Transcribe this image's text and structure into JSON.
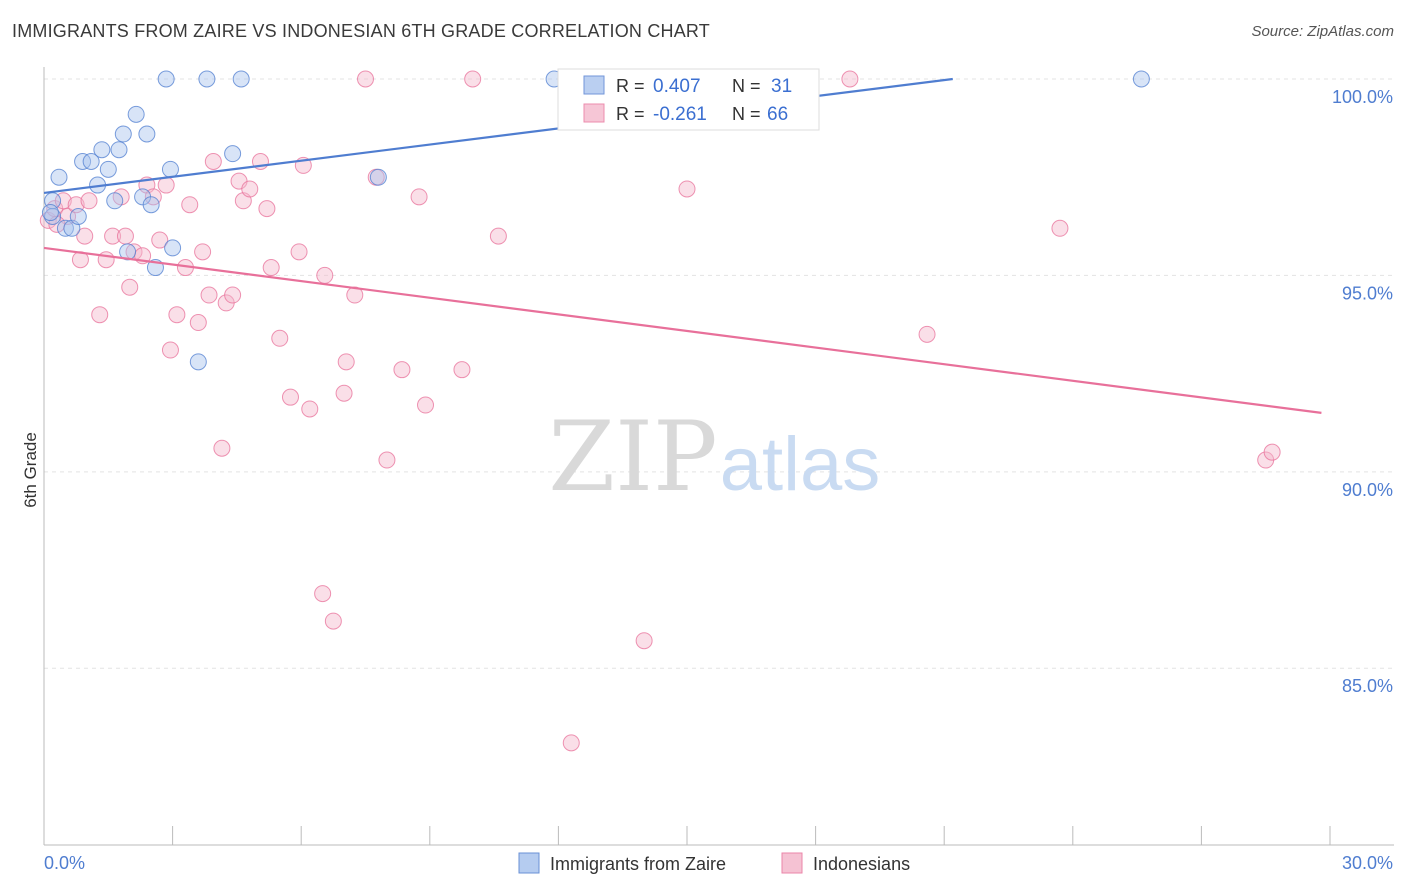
{
  "title": "IMMIGRANTS FROM ZAIRE VS INDONESIAN 6TH GRADE CORRELATION CHART",
  "source": "Source: ZipAtlas.com",
  "watermark": {
    "zip": "ZIP",
    "atlas": "atlas"
  },
  "colors": {
    "blue": "#4f7dd0",
    "blue_fill": "#a9c4ee",
    "pink": "#e8709a",
    "pink_fill": "#f4b8cc",
    "grid": "#e3e3e3"
  },
  "stats": {
    "r_label": "R =",
    "n_label": "N =",
    "rows": [
      {
        "series": "Immigrants from Zaire",
        "r": "0.407",
        "n": "31"
      },
      {
        "series": "Indonesians",
        "r": "-0.261",
        "n": "66"
      }
    ]
  },
  "chart_data": {
    "type": "scatter",
    "title": "IMMIGRANTS FROM ZAIRE VS INDONESIAN 6TH GRADE CORRELATION CHART",
    "xlabel": "",
    "ylabel": "6th Grade",
    "xlim": [
      0,
      30
    ],
    "ylim": [
      80.5,
      100.7
    ],
    "x_tick_labels": [
      {
        "value": 0,
        "label": "0.0%"
      },
      {
        "value": 30,
        "label": "30.0%"
      }
    ],
    "x_minor_ticks": [
      3,
      6,
      9,
      12,
      15,
      18,
      21,
      24,
      27,
      30
    ],
    "y_tick_labels": [
      {
        "value": 100,
        "label": "100.0%"
      },
      {
        "value": 95,
        "label": "95.0%"
      },
      {
        "value": 90,
        "label": "90.0%"
      },
      {
        "value": 85,
        "label": "85.0%"
      }
    ],
    "grid": true,
    "legend": "bottom",
    "series": [
      {
        "name": "Immigrants from Zaire",
        "color": "#4f7dd0",
        "trend": {
          "x": [
            0,
            21.2
          ],
          "y": [
            97.1,
            100.0
          ]
        },
        "points": [
          {
            "x": 0.2,
            "y": 96.5
          },
          {
            "x": 0.2,
            "y": 96.9
          },
          {
            "x": 0.35,
            "y": 97.5
          },
          {
            "x": 0.5,
            "y": 96.2
          },
          {
            "x": 0.65,
            "y": 96.2
          },
          {
            "x": 0.8,
            "y": 96.5
          },
          {
            "x": 0.9,
            "y": 97.9
          },
          {
            "x": 1.1,
            "y": 97.9
          },
          {
            "x": 1.25,
            "y": 97.3
          },
          {
            "x": 1.35,
            "y": 98.2
          },
          {
            "x": 1.5,
            "y": 97.7
          },
          {
            "x": 1.65,
            "y": 96.9
          },
          {
            "x": 1.75,
            "y": 98.2
          },
          {
            "x": 1.85,
            "y": 98.6
          },
          {
            "x": 1.95,
            "y": 95.6
          },
          {
            "x": 2.15,
            "y": 99.1
          },
          {
            "x": 2.3,
            "y": 97.0
          },
          {
            "x": 2.4,
            "y": 98.6
          },
          {
            "x": 2.5,
            "y": 96.8
          },
          {
            "x": 2.6,
            "y": 95.2
          },
          {
            "x": 2.85,
            "y": 100.0
          },
          {
            "x": 2.95,
            "y": 97.7
          },
          {
            "x": 3.0,
            "y": 95.7
          },
          {
            "x": 3.6,
            "y": 92.8
          },
          {
            "x": 3.8,
            "y": 100.0
          },
          {
            "x": 4.4,
            "y": 98.1
          },
          {
            "x": 4.6,
            "y": 100.0
          },
          {
            "x": 7.8,
            "y": 97.5
          },
          {
            "x": 11.9,
            "y": 100.0
          },
          {
            "x": 25.6,
            "y": 100.0
          },
          {
            "x": 0.15,
            "y": 96.6
          }
        ]
      },
      {
        "name": "Indonesians",
        "color": "#e8709a",
        "trend": {
          "x": [
            0,
            29.8
          ],
          "y": [
            95.7,
            91.5
          ]
        },
        "points": [
          {
            "x": 0.1,
            "y": 96.4
          },
          {
            "x": 0.25,
            "y": 96.7
          },
          {
            "x": 0.45,
            "y": 96.9
          },
          {
            "x": 0.55,
            "y": 96.5
          },
          {
            "x": 0.75,
            "y": 96.8
          },
          {
            "x": 0.85,
            "y": 95.4
          },
          {
            "x": 0.95,
            "y": 96.0
          },
          {
            "x": 1.05,
            "y": 96.9
          },
          {
            "x": 1.3,
            "y": 94.0
          },
          {
            "x": 1.45,
            "y": 95.4
          },
          {
            "x": 1.6,
            "y": 96.0
          },
          {
            "x": 1.8,
            "y": 97.0
          },
          {
            "x": 1.9,
            "y": 96.0
          },
          {
            "x": 2.0,
            "y": 94.7
          },
          {
            "x": 2.1,
            "y": 95.6
          },
          {
            "x": 2.3,
            "y": 95.5
          },
          {
            "x": 2.4,
            "y": 97.3
          },
          {
            "x": 2.55,
            "y": 97.0
          },
          {
            "x": 2.7,
            "y": 95.9
          },
          {
            "x": 2.85,
            "y": 97.3
          },
          {
            "x": 2.95,
            "y": 93.1
          },
          {
            "x": 3.1,
            "y": 94.0
          },
          {
            "x": 3.3,
            "y": 95.2
          },
          {
            "x": 3.4,
            "y": 96.8
          },
          {
            "x": 3.6,
            "y": 93.8
          },
          {
            "x": 3.7,
            "y": 95.6
          },
          {
            "x": 3.85,
            "y": 94.5
          },
          {
            "x": 3.95,
            "y": 97.9
          },
          {
            "x": 4.15,
            "y": 90.6
          },
          {
            "x": 4.25,
            "y": 94.3
          },
          {
            "x": 4.4,
            "y": 94.5
          },
          {
            "x": 4.55,
            "y": 97.4
          },
          {
            "x": 4.65,
            "y": 96.9
          },
          {
            "x": 4.8,
            "y": 97.2
          },
          {
            "x": 5.05,
            "y": 97.9
          },
          {
            "x": 5.2,
            "y": 96.7
          },
          {
            "x": 5.3,
            "y": 95.2
          },
          {
            "x": 5.5,
            "y": 93.4
          },
          {
            "x": 5.75,
            "y": 91.9
          },
          {
            "x": 5.95,
            "y": 95.6
          },
          {
            "x": 6.05,
            "y": 97.8
          },
          {
            "x": 6.2,
            "y": 91.6
          },
          {
            "x": 6.5,
            "y": 86.9
          },
          {
            "x": 6.55,
            "y": 95.0
          },
          {
            "x": 6.75,
            "y": 86.2
          },
          {
            "x": 7.0,
            "y": 92.0
          },
          {
            "x": 7.05,
            "y": 92.8
          },
          {
            "x": 7.25,
            "y": 94.5
          },
          {
            "x": 7.5,
            "y": 100.0
          },
          {
            "x": 7.75,
            "y": 97.5
          },
          {
            "x": 8.0,
            "y": 90.3
          },
          {
            "x": 8.35,
            "y": 92.6
          },
          {
            "x": 8.75,
            "y": 97.0
          },
          {
            "x": 8.9,
            "y": 91.7
          },
          {
            "x": 9.75,
            "y": 92.6
          },
          {
            "x": 10.0,
            "y": 100.0
          },
          {
            "x": 10.6,
            "y": 96.0
          },
          {
            "x": 12.3,
            "y": 83.1
          },
          {
            "x": 14.0,
            "y": 85.7
          },
          {
            "x": 15.0,
            "y": 97.2
          },
          {
            "x": 18.8,
            "y": 100.0
          },
          {
            "x": 20.6,
            "y": 93.5
          },
          {
            "x": 23.7,
            "y": 96.2
          },
          {
            "x": 28.5,
            "y": 90.3
          },
          {
            "x": 28.65,
            "y": 90.5
          },
          {
            "x": 0.3,
            "y": 96.3
          }
        ]
      }
    ]
  },
  "legend": {
    "items": [
      {
        "label": "Immigrants from Zaire"
      },
      {
        "label": "Indonesians"
      }
    ]
  }
}
